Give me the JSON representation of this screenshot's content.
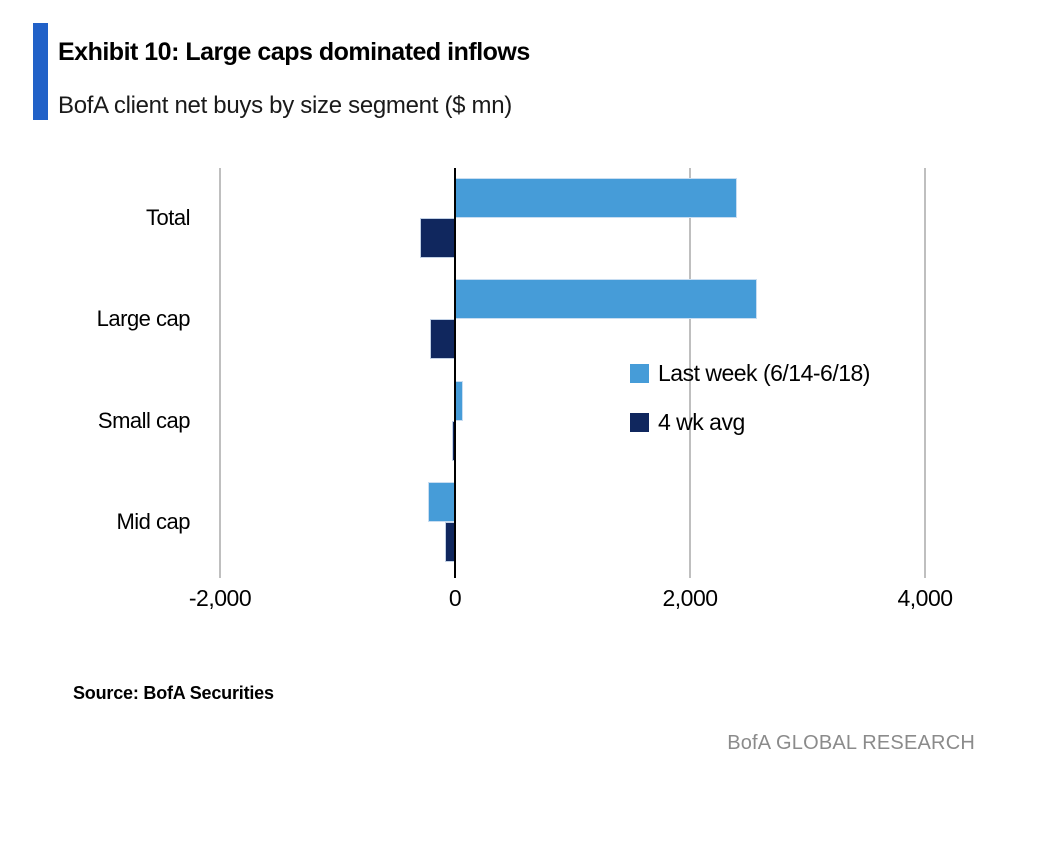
{
  "header": {
    "title": "Exhibit 10: Large caps dominated inflows",
    "subtitle": "BofA client net buys by size segment ($ mn)",
    "accent_color": "#2161c8"
  },
  "chart_data": {
    "type": "bar",
    "orientation": "horizontal",
    "title": "Exhibit 10: Large caps dominated inflows",
    "subtitle": "BofA client net buys by size segment ($ mn)",
    "unit": "$ mn",
    "categories": [
      "Total",
      "Large cap",
      "Small cap",
      "Mid cap"
    ],
    "series": [
      {
        "name": "Last week (6/14-6/18)",
        "color": "#469cd8",
        "values": [
          2400,
          2570,
          70,
          -230
        ]
      },
      {
        "name": "4 wk avg",
        "color": "#10275e",
        "values": [
          -300,
          -210,
          -25,
          -85
        ]
      }
    ],
    "xlim": [
      -2000,
      4000
    ],
    "xticks": [
      -2000,
      0,
      2000,
      4000
    ],
    "xtick_labels": [
      "-2,000",
      "0",
      "2,000",
      "4,000"
    ],
    "grid": true,
    "gridline_color": "#bfbfbf",
    "zero_line_color": "#000000",
    "legend_position": "center-right"
  },
  "footer": {
    "source": "Source: BofA Securities",
    "brand": "BofA GLOBAL RESEARCH"
  }
}
